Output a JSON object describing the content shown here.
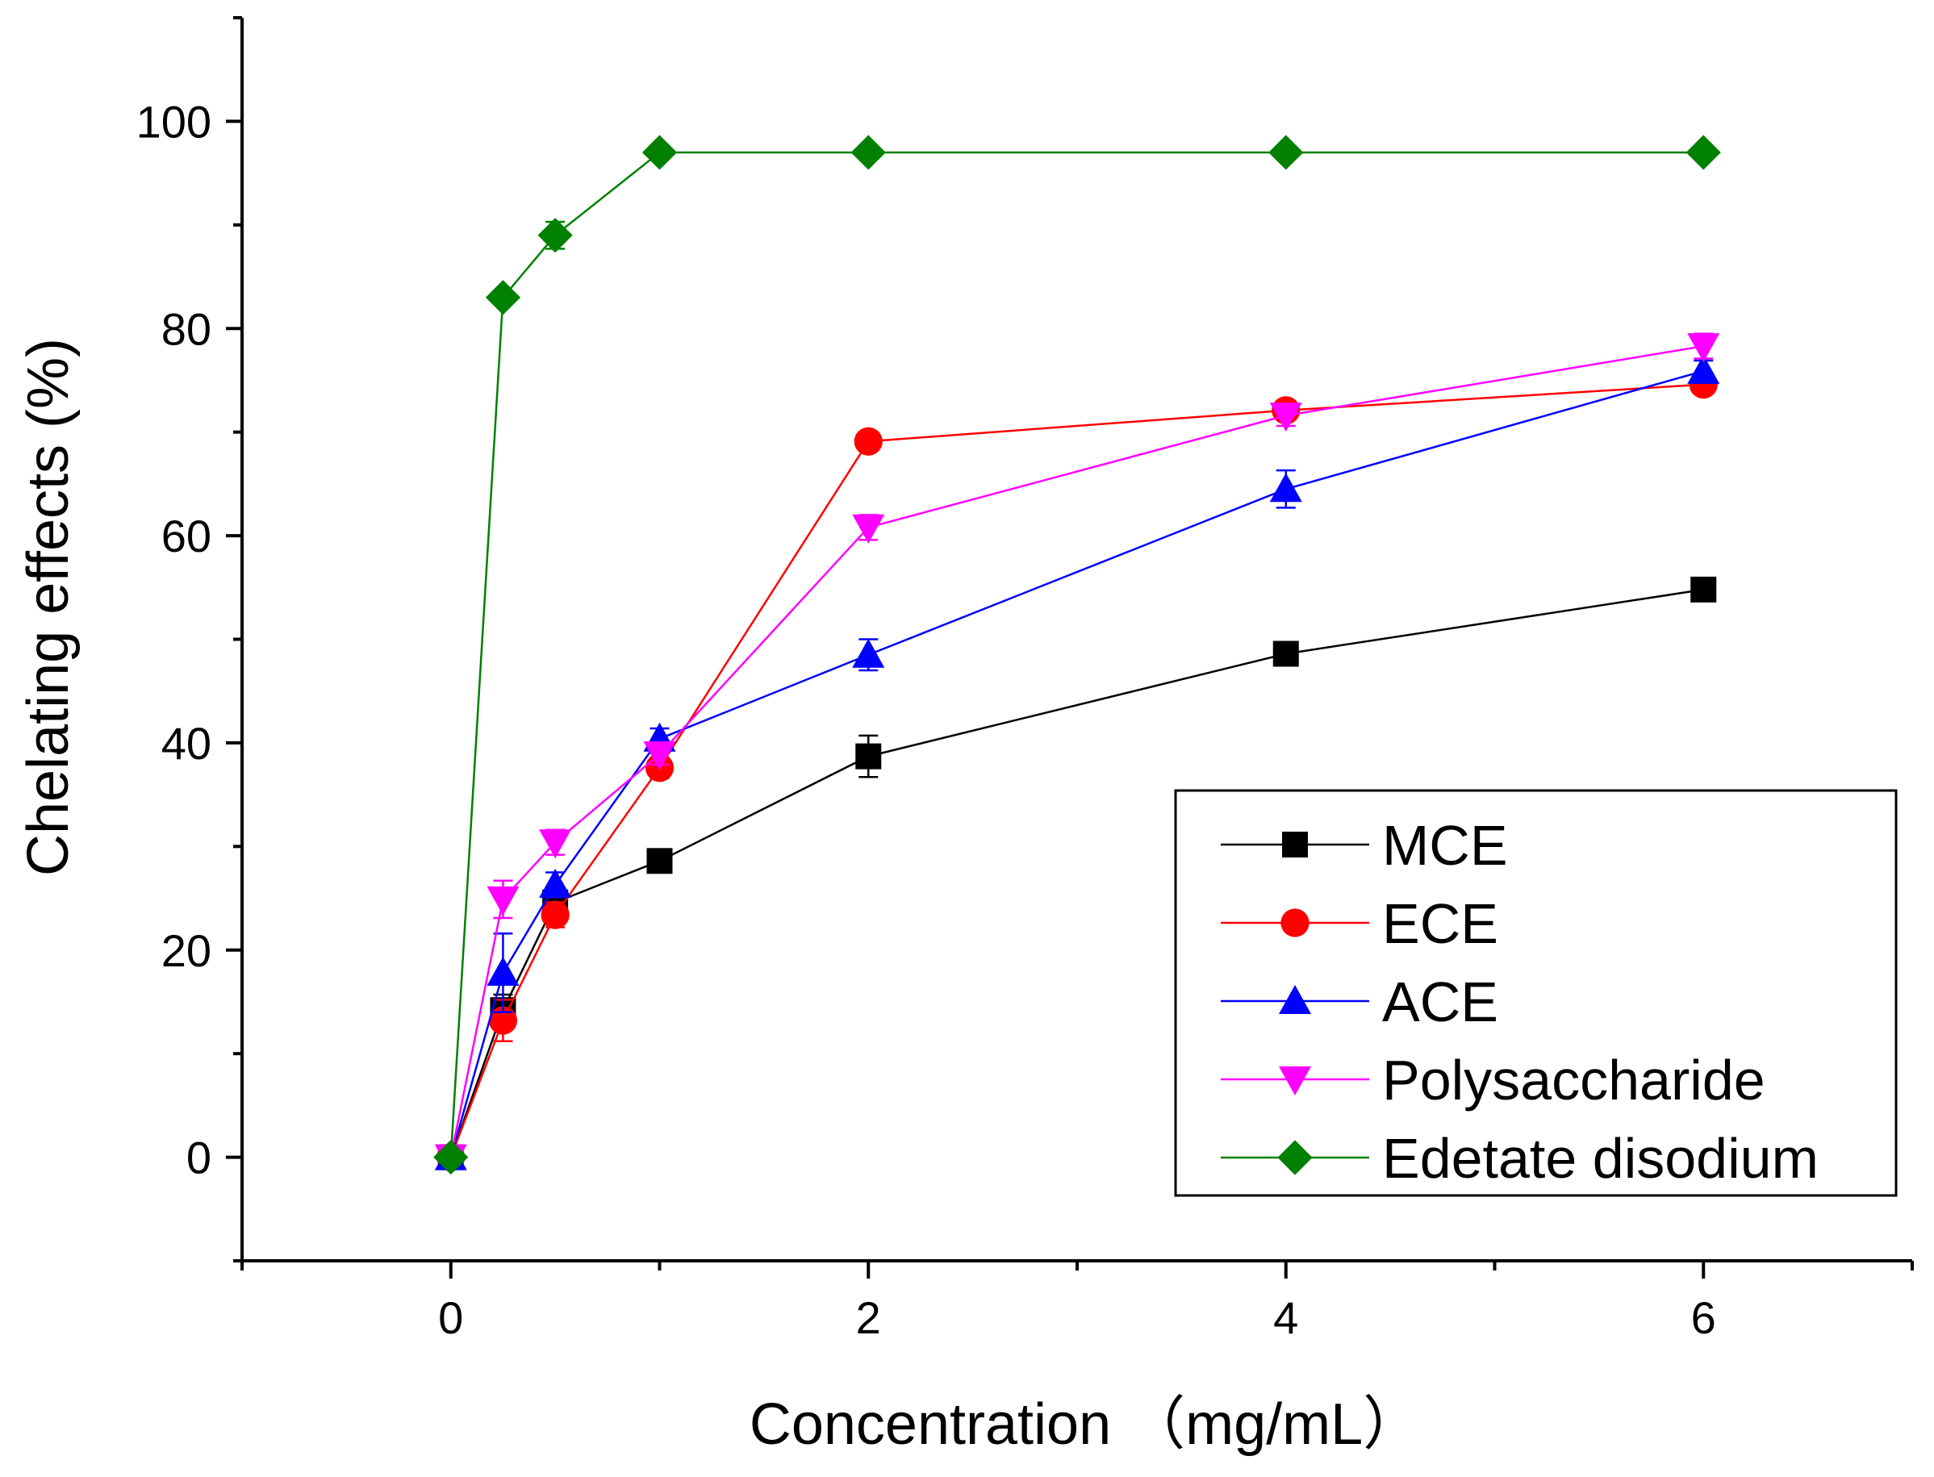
{
  "chart_data": {
    "type": "line",
    "title": "",
    "xlabel": "Concentration （mg/mL）",
    "ylabel": "Chelating effects (%)",
    "xlim": [
      -1,
      7
    ],
    "ylim": [
      -10,
      110
    ],
    "x_ticks": [
      "0",
      "2",
      "4",
      "6"
    ],
    "y_ticks": [
      "0",
      "20",
      "40",
      "60",
      "80",
      "100"
    ],
    "legend_position": "bottom-right",
    "x": [
      0,
      0.25,
      0.5,
      1,
      2,
      4,
      6
    ],
    "series": [
      {
        "name": "MCE",
        "color": "#000000",
        "marker": "square",
        "values": [
          0,
          14.2,
          24.6,
          28.6,
          38.7,
          48.6,
          54.8
        ],
        "errors": [
          0.5,
          1.5,
          1.0,
          0.8,
          2.0,
          0.8,
          0.8
        ]
      },
      {
        "name": "ECE",
        "color": "#ff0000",
        "marker": "circle",
        "values": [
          0,
          13.2,
          23.4,
          37.6,
          69.1,
          72.1,
          74.6
        ],
        "errors": [
          0.5,
          2.0,
          1.2,
          1.0,
          0.8,
          0.8,
          0.8
        ]
      },
      {
        "name": "ACE",
        "color": "#0000ff",
        "marker": "triangle-up",
        "values": [
          0,
          17.8,
          26.3,
          40.4,
          48.5,
          64.5,
          75.9
        ],
        "errors": [
          0.5,
          3.8,
          1.2,
          1.0,
          1.5,
          1.8,
          1.0
        ]
      },
      {
        "name": "Polysaccharide",
        "color": "#ff00ff",
        "marker": "triangle-down",
        "values": [
          0,
          24.9,
          30.4,
          38.9,
          60.8,
          71.6,
          78.3
        ],
        "errors": [
          0.5,
          1.8,
          1.2,
          1.0,
          1.2,
          1.0,
          1.2
        ]
      },
      {
        "name": "Edetate disodium",
        "color": "#008000",
        "marker": "diamond",
        "values": [
          0,
          83.0,
          89.0,
          97.0,
          97.0,
          97.0,
          97.0
        ],
        "errors": [
          0.5,
          0.6,
          1.3,
          0.5,
          0.5,
          0.5,
          0.5
        ]
      }
    ]
  }
}
